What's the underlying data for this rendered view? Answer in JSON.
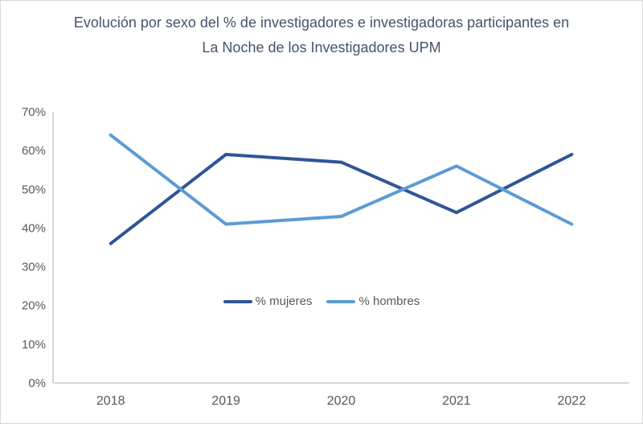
{
  "chart_data": {
    "type": "line",
    "title": "Evolución por sexo del % de investigadores e investigadoras participantes en La Noche de los Investigadores UPM",
    "categories": [
      "2018",
      "2019",
      "2020",
      "2021",
      "2022"
    ],
    "series": [
      {
        "name": "% mujeres",
        "color": "#2F5597",
        "values": [
          36,
          59,
          57,
          44,
          59
        ]
      },
      {
        "name": "% hombres",
        "color": "#5B9BD5",
        "values": [
          64,
          41,
          43,
          56,
          41
        ]
      }
    ],
    "xlabel": "",
    "ylabel": "",
    "ylim": [
      0,
      70
    ],
    "ytick_step": 10,
    "ytick_labels": [
      "0%",
      "10%",
      "20%",
      "30%",
      "40%",
      "50%",
      "60%",
      "70%"
    ],
    "grid": false,
    "legend_position": "inside-plot-center",
    "styles": {
      "background": "#FFFFFF",
      "border_color": "#D9D9D9",
      "axis_color": "#BFBFBF",
      "tick_label_color": "#595959",
      "title_color": "#44546A",
      "line_width": 4
    }
  }
}
